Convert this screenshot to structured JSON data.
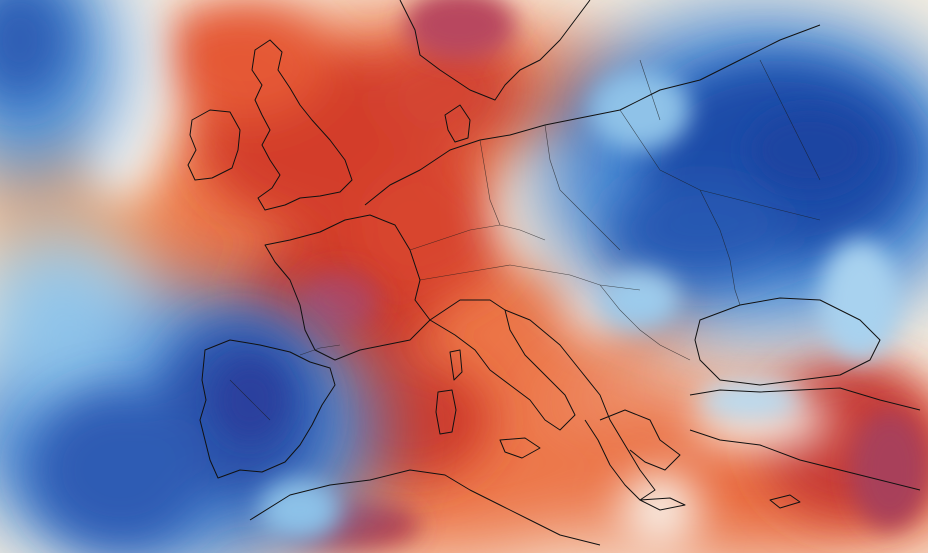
{
  "map": {
    "type": "temperature-anomaly-heatmap",
    "region": "Europe",
    "colors": {
      "strong_cold": "#1c47a8",
      "cold": "#3e7fcf",
      "cool": "#8cc3ea",
      "neutral": "#f7f3ea",
      "mild_warm": "#f3b37a",
      "warm": "#ea6a3a",
      "hot": "#cf3a2a",
      "extreme_hot": "#b33a52",
      "border": "#111111"
    },
    "text_labels": []
  }
}
